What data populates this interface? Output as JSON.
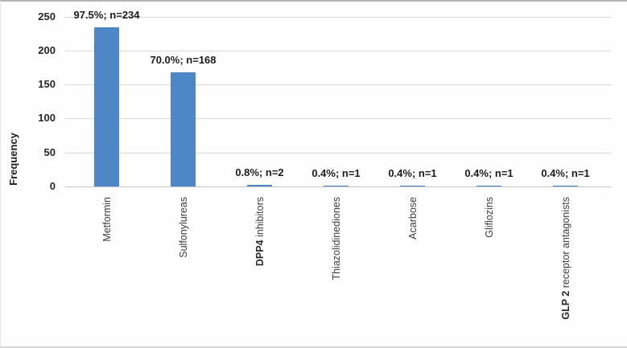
{
  "chart_data": {
    "type": "bar",
    "title": "",
    "xlabel": "",
    "ylabel": "Frequency",
    "ylim": [
      0,
      250
    ],
    "yticks": [
      0,
      50,
      100,
      150,
      200,
      250
    ],
    "grid": true,
    "legend": false,
    "categories": [
      "Metformin",
      "Sulfonylureas",
      "DPP4 inhibitors",
      "Thiazolidinediones",
      "Acarbose",
      "Gliflozins",
      "GLP 2 receptor antagonists"
    ],
    "category_bold_prefixes": [
      "",
      "",
      "DPP4",
      "",
      "",
      "",
      "GLP 2"
    ],
    "values": [
      234,
      168,
      2,
      1,
      1,
      1,
      1
    ],
    "data_labels": [
      "97.5%; n=234",
      "70.0%; n=168",
      "0.8%; n=2",
      "0.4%; n=1",
      "0.4%; n=1",
      "0.4%; n=1",
      "0.4%; n=1"
    ],
    "bar_color": "#4e87c6",
    "gridline_color": "#dadada",
    "axis_text_color": "#262626"
  }
}
